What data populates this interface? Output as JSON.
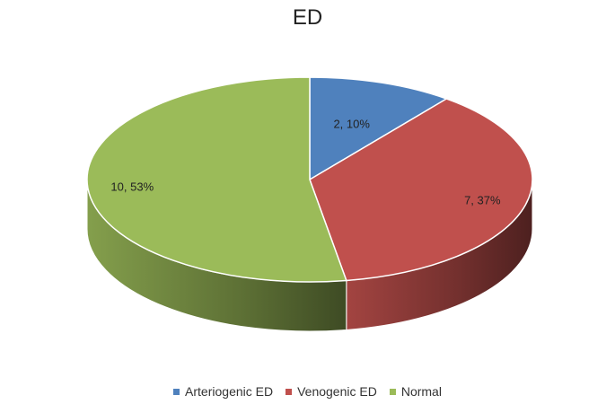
{
  "chart_data": {
    "type": "pie",
    "title": "ED",
    "three_d": true,
    "legend_position": "bottom",
    "slices": [
      {
        "name": "Arteriogenic ED",
        "value": 2,
        "percent": "10%",
        "color": "#4f81bd",
        "label": "2, 10%"
      },
      {
        "name": "Venogenic ED",
        "value": 7,
        "percent": "37%",
        "color": "#c0504d",
        "label": "7, 37%"
      },
      {
        "name": "Normal",
        "value": 10,
        "percent": "53%",
        "color": "#9bbb59",
        "label": "10, 53%"
      }
    ]
  }
}
